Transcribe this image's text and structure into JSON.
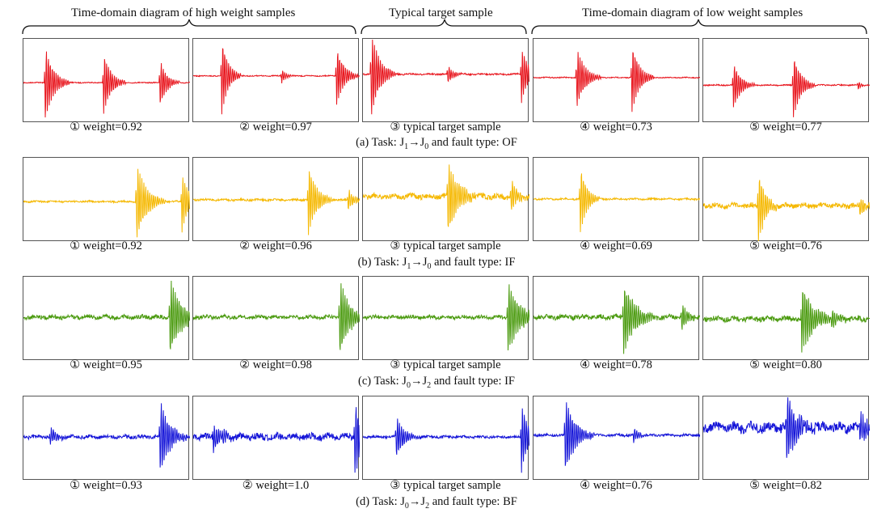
{
  "headers": {
    "high": "Time-domain diagram of high weight samples",
    "typical": "Typical target sample",
    "low": "Time-domain diagram of low weight samples"
  },
  "rows": [
    {
      "color": "#e8141c",
      "caption": {
        "pre": "(a) Task: J",
        "s1": "1",
        "arrow": "→",
        "mid": "J",
        "s2": "0",
        "post": " and fault type: OF"
      },
      "labels": [
        "① weight=0.92",
        "② weight=0.97",
        "③ typical target sample",
        "④ weight=0.73",
        "⑤ weight=0.77"
      ]
    },
    {
      "color": "#f5b800",
      "caption": {
        "pre": "(b) Task: J",
        "s1": "1",
        "arrow": "→",
        "mid": "J",
        "s2": "0",
        "post": " and fault type: IF"
      },
      "labels": [
        "① weight=0.92",
        "② weight=0.96",
        "③ typical target sample",
        "④ weight=0.69",
        "⑤ weight=0.76"
      ]
    },
    {
      "color": "#4a9a0e",
      "caption": {
        "pre": "(c) Task: J",
        "s1": "0",
        "arrow": "→",
        "mid": "J",
        "s2": "2",
        "post": " and fault type: IF"
      },
      "labels": [
        "① weight=0.95",
        "② weight=0.98",
        "③ typical target sample",
        "④ weight=0.78",
        "⑤ weight=0.80"
      ]
    },
    {
      "color": "#1414d8",
      "caption": {
        "pre": "(d) Task: J",
        "s1": "0",
        "arrow": "→",
        "mid": "J",
        "s2": "2",
        "post": " and fault type: BF"
      },
      "labels": [
        "① weight=0.93",
        "② weight=1.0",
        "③ typical target sample",
        "④ weight=0.76",
        "⑤ weight=0.82"
      ]
    }
  ]
}
